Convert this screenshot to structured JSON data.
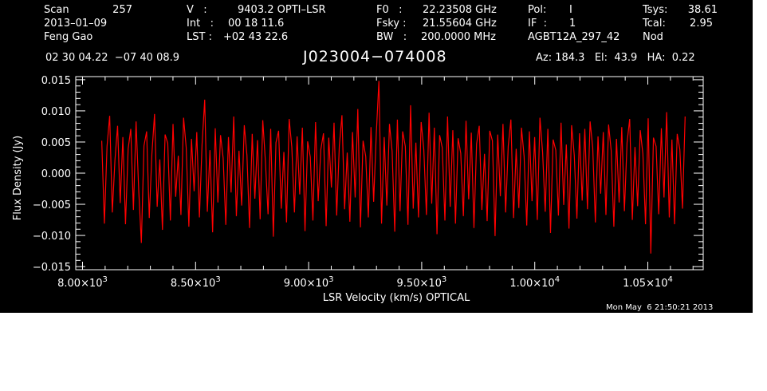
{
  "header": {
    "rows": [
      [
        {
          "label": "Scan",
          "value": "257"
        },
        {
          "label": "V   :",
          "value": "9403.2 OPTI–LSR"
        },
        {
          "label": "F0   :",
          "value": "22.23508 GHz"
        },
        {
          "label": "Pol:",
          "value": "I"
        },
        {
          "label": "Tsys:",
          "value": "38.61"
        }
      ],
      [
        {
          "label": "2013–01–09",
          "value": ""
        },
        {
          "label": "Int   :",
          "value": "00 18 11.6"
        },
        {
          "label": "Fsky :",
          "value": "21.55604 GHz"
        },
        {
          "label": "IF  :",
          "value": "1"
        },
        {
          "label": "Tcal:",
          "value": "2.95"
        }
      ],
      [
        {
          "label": "Feng Gao",
          "value": ""
        },
        {
          "label": "LST :",
          "value": "+02 43 22.6"
        },
        {
          "label": "BW   :",
          "value": "200.0000 MHz"
        },
        {
          "label": "AGBT12A_297_42",
          "value": ""
        },
        {
          "label": "Nod",
          "value": ""
        }
      ]
    ],
    "coords": "02 30 04.22  −07 40 08.9",
    "source": "J023004−074008",
    "az_el_ha": "Az: 184.3   El:  43.9   HA:  0.22"
  },
  "timestamp": "Mon May  6 21:50:21 2013",
  "colors": {
    "background": "#000000",
    "trace": "#ff0000",
    "axes": "#ffffff"
  },
  "chart_data": {
    "type": "line",
    "title": "J023004−074008",
    "xlabel": "LSR Velocity (km/s) OPTICAL",
    "ylabel": "Flux Density (Jy)",
    "xlim": [
      7970,
      10745
    ],
    "ylim": [
      -0.0155,
      0.0155
    ],
    "x_major_ticks": [
      8000,
      8500,
      9000,
      9500,
      10000,
      10500
    ],
    "x_tick_labels": [
      {
        "mant": "8.00×10",
        "exp": "3"
      },
      {
        "mant": "8.50×10",
        "exp": "3"
      },
      {
        "mant": "9.00×10",
        "exp": "3"
      },
      {
        "mant": "9.50×10",
        "exp": "3"
      },
      {
        "mant": "1.00×10",
        "exp": "4"
      },
      {
        "mant": "1.05×10",
        "exp": "4"
      }
    ],
    "y_major_ticks": [
      -0.015,
      -0.01,
      -0.005,
      0.0,
      0.005,
      0.01,
      0.015
    ],
    "y_tick_labels": [
      "−0.015",
      "−0.010",
      "−0.005",
      "0.000",
      "0.005",
      "0.010",
      "0.015"
    ],
    "grid": false,
    "series": [
      {
        "x_range": [
          8085,
          10665
        ],
        "values": [
          0.0052,
          -0.0081,
          0.0043,
          0.0092,
          -0.0063,
          0.0021,
          0.0076,
          -0.0048,
          0.0058,
          -0.0082,
          0.0039,
          0.0071,
          -0.0059,
          0.0083,
          -0.0027,
          -0.0112,
          0.0044,
          0.0067,
          -0.0072,
          0.0031,
          0.0095,
          -0.0054,
          0.0022,
          -0.0091,
          0.0062,
          0.0048,
          -0.0076,
          0.0079,
          -0.0038,
          0.0028,
          -0.0067,
          0.0089,
          0.0041,
          -0.0086,
          0.0055,
          -0.0029,
          0.0066,
          -0.0071,
          0.0046,
          0.0118,
          -0.0062,
          0.0037,
          -0.0095,
          0.0072,
          -0.0047,
          0.0061,
          0.0024,
          -0.0083,
          0.0058,
          -0.0031,
          0.0091,
          -0.0069,
          0.0036,
          -0.0052,
          0.0077,
          0.0029,
          -0.0088,
          0.0063,
          -0.0041,
          0.0053,
          -0.0074,
          0.0085,
          0.0019,
          -0.0066,
          0.0071,
          -0.0102,
          0.0049,
          0.0068,
          -0.0057,
          0.0034,
          -0.0079,
          0.0087,
          0.0042,
          -0.0063,
          0.0059,
          -0.0034,
          0.0073,
          -0.0093,
          0.0051,
          0.0026,
          -0.0076,
          0.0082,
          -0.0045,
          0.0038,
          0.0064,
          -0.0085,
          0.0057,
          -0.0023,
          0.0081,
          -0.0068,
          0.0044,
          0.0093,
          -0.0058,
          0.0033,
          -0.0078,
          0.0066,
          -0.0039,
          0.0103,
          -0.0087,
          0.0052,
          0.0027,
          -0.0071,
          0.0074,
          -0.0046,
          0.0063,
          0.0148,
          -0.0081,
          0.0058,
          -0.0052,
          0.0079,
          0.0035,
          -0.0094,
          0.0086,
          -0.0061,
          0.0067,
          0.0043,
          -0.0083,
          0.0109,
          -0.0057,
          0.0049,
          -0.0071,
          0.0082,
          0.0038,
          -0.0067,
          0.0097,
          -0.0049,
          0.0073,
          -0.0098,
          0.0061,
          0.0041,
          -0.0076,
          0.0091,
          -0.0054,
          0.0069,
          -0.0081,
          0.0056,
          0.0032,
          -0.0069,
          0.0084,
          -0.0042,
          0.0065,
          -0.0088,
          0.0047,
          0.0076,
          -0.0059,
          0.0031,
          -0.0077,
          0.0068,
          0.0052,
          -0.0101,
          0.0062,
          -0.0037,
          0.0079,
          -0.0063,
          0.0044,
          0.0086,
          -0.0072,
          0.0039,
          -0.0056,
          0.0073,
          0.0027,
          -0.0084,
          0.0067,
          -0.0045,
          0.0058,
          -0.0075,
          0.0089,
          0.0034,
          -0.0062,
          0.0071,
          -0.0096,
          0.0054,
          0.0037,
          -0.0068,
          0.0081,
          -0.0051,
          0.0046,
          -0.0089,
          0.0077,
          0.0029,
          -0.0073,
          0.0064,
          -0.0044,
          0.0071,
          -0.0058,
          0.0083,
          0.0041,
          -0.0079,
          0.0059,
          -0.0033,
          0.0066,
          -0.0067,
          0.0078,
          0.0036,
          -0.0086,
          0.0055,
          -0.0047,
          0.0074,
          -0.0061,
          0.0049,
          0.0087,
          -0.0075,
          0.0042,
          -0.0053,
          0.0069,
          0.0031,
          -0.0082,
          0.0088,
          -0.0129,
          0.0057,
          0.0043,
          -0.0066,
          0.0072,
          -0.0039,
          0.0098,
          -0.0071,
          0.0054,
          -0.0082,
          0.0063,
          0.0038,
          -0.0057,
          0.0091
        ]
      }
    ]
  }
}
